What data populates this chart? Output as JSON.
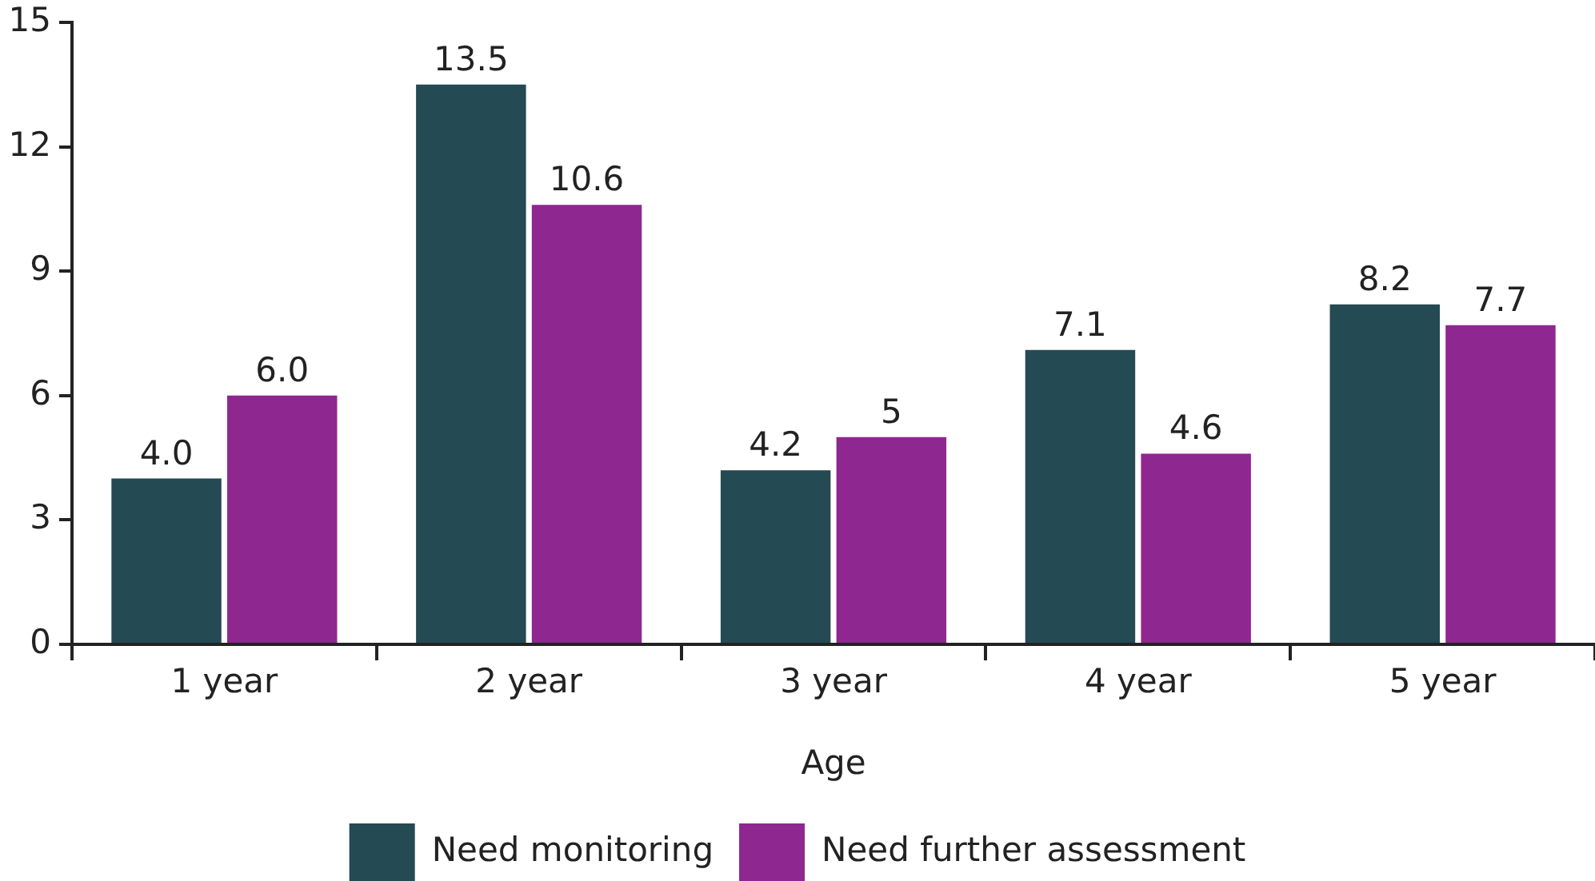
{
  "chart_data": {
    "type": "bar",
    "xlabel": "Age",
    "categories": [
      "1 year",
      "2 year",
      "3 year",
      "4 year",
      "5 year"
    ],
    "series": [
      {
        "name": "Need monitoring",
        "color": "#244a53",
        "values": [
          4.0,
          13.5,
          4.2,
          7.1,
          8.2
        ],
        "value_labels": [
          "4.0",
          "13.5",
          "4.2",
          "7.1",
          "8.2"
        ]
      },
      {
        "name": "Need further assessment",
        "color": "#8e278f",
        "values": [
          6.0,
          10.6,
          5,
          4.6,
          7.7
        ],
        "value_labels": [
          "6.0",
          "10.6",
          "5",
          "4.6",
          "7.7"
        ]
      }
    ],
    "ylim": [
      0,
      15
    ],
    "yticks": [
      0,
      3,
      6,
      9,
      12,
      15
    ],
    "grid": false,
    "legend": "bottom"
  }
}
